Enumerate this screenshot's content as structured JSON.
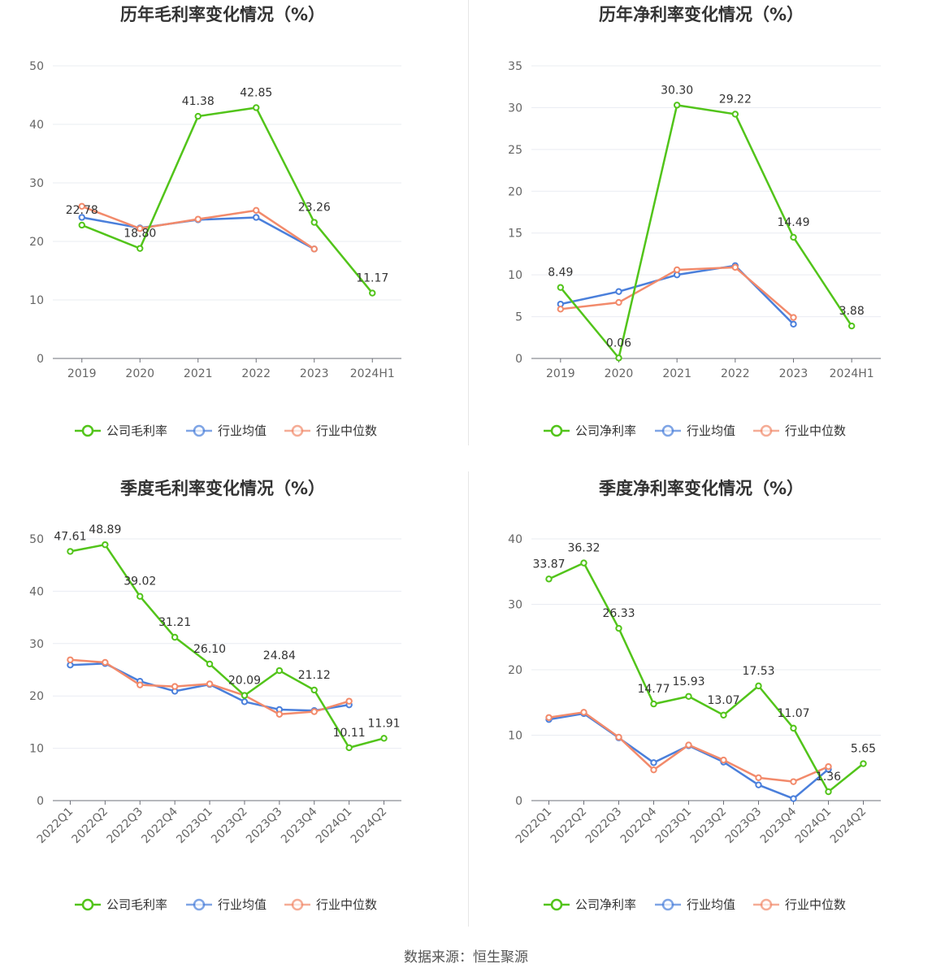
{
  "colors": {
    "company": "#52c41a",
    "industry_avg": "#4a7fdb",
    "industry_median": "#f28a6b"
  },
  "source": "数据来源：恒生聚源",
  "chart_data": [
    {
      "type": "line",
      "title": "历年毛利率变化情况（%）",
      "categories": [
        "2019",
        "2020",
        "2021",
        "2022",
        "2023",
        "2024H1"
      ],
      "ylim": [
        0,
        50
      ],
      "yticks": [
        0,
        10,
        20,
        30,
        40,
        50
      ],
      "series": [
        {
          "name": "公司毛利率",
          "key": "company",
          "values": [
            22.78,
            18.8,
            41.38,
            42.85,
            23.26,
            11.17
          ],
          "labels": [
            "22.78",
            "18.80",
            "41.38",
            "42.85",
            "23.26",
            "11.17"
          ]
        },
        {
          "name": "行业均值",
          "key": "industry_avg",
          "values": [
            24.1,
            22.3,
            23.7,
            24.1,
            18.7,
            null
          ]
        },
        {
          "name": "行业中位数",
          "key": "industry_median",
          "values": [
            26.0,
            22.2,
            23.8,
            25.3,
            18.7,
            null
          ]
        }
      ]
    },
    {
      "type": "line",
      "title": "历年净利率变化情况（%）",
      "categories": [
        "2019",
        "2020",
        "2021",
        "2022",
        "2023",
        "2024H1"
      ],
      "ylim": [
        0,
        35
      ],
      "yticks": [
        0,
        5,
        10,
        15,
        20,
        25,
        30,
        35
      ],
      "series": [
        {
          "name": "公司净利率",
          "key": "company",
          "values": [
            8.49,
            0.06,
            30.3,
            29.22,
            14.49,
            3.88
          ],
          "labels": [
            "8.49",
            "0.06",
            "30.30",
            "29.22",
            "14.49",
            "3.88"
          ]
        },
        {
          "name": "行业均值",
          "key": "industry_avg",
          "values": [
            6.5,
            8.0,
            10.0,
            11.1,
            4.1,
            null
          ]
        },
        {
          "name": "行业中位数",
          "key": "industry_median",
          "values": [
            5.9,
            6.7,
            10.6,
            10.9,
            4.9,
            null
          ]
        }
      ]
    },
    {
      "type": "line",
      "title": "季度毛利率变化情况（%）",
      "categories": [
        "2022Q1",
        "2022Q2",
        "2022Q3",
        "2022Q4",
        "2023Q1",
        "2023Q2",
        "2023Q3",
        "2023Q4",
        "2024Q1",
        "2024Q2"
      ],
      "ylim": [
        0,
        50
      ],
      "yticks": [
        0,
        10,
        20,
        30,
        40,
        50
      ],
      "series": [
        {
          "name": "公司毛利率",
          "key": "company",
          "values": [
            47.61,
            48.89,
            39.02,
            31.21,
            26.1,
            20.09,
            24.84,
            21.12,
            10.11,
            11.91
          ],
          "labels": [
            "47.61",
            "48.89",
            "39.02",
            "31.21",
            "26.10",
            "20.09",
            "24.84",
            "21.12",
            "10.11",
            "11.91"
          ]
        },
        {
          "name": "行业均值",
          "key": "industry_avg",
          "values": [
            25.9,
            26.2,
            22.8,
            20.9,
            22.2,
            18.9,
            17.4,
            17.2,
            18.3,
            null
          ]
        },
        {
          "name": "行业中位数",
          "key": "industry_median",
          "values": [
            26.9,
            26.4,
            22.1,
            21.8,
            22.3,
            20.1,
            16.5,
            17.0,
            19.0,
            null
          ]
        }
      ]
    },
    {
      "type": "line",
      "title": "季度净利率变化情况（%）",
      "categories": [
        "2022Q1",
        "2022Q2",
        "2022Q3",
        "2022Q4",
        "2023Q1",
        "2023Q2",
        "2023Q3",
        "2023Q4",
        "2024Q1",
        "2024Q2"
      ],
      "ylim": [
        0,
        40
      ],
      "yticks": [
        0,
        10,
        20,
        30,
        40
      ],
      "series": [
        {
          "name": "公司净利率",
          "key": "company",
          "values": [
            33.87,
            36.32,
            26.33,
            14.77,
            15.93,
            13.07,
            17.53,
            11.07,
            1.36,
            5.65
          ],
          "labels": [
            "33.87",
            "36.32",
            "26.33",
            "14.77",
            "15.93",
            "13.07",
            "17.53",
            "11.07",
            "1.36",
            "5.65"
          ]
        },
        {
          "name": "行业均值",
          "key": "industry_avg",
          "values": [
            12.4,
            13.3,
            9.6,
            5.8,
            8.4,
            5.9,
            2.4,
            0.3,
            4.8,
            null
          ]
        },
        {
          "name": "行业中位数",
          "key": "industry_median",
          "values": [
            12.7,
            13.5,
            9.7,
            4.7,
            8.5,
            6.2,
            3.5,
            2.9,
            5.2,
            null
          ]
        }
      ]
    }
  ]
}
